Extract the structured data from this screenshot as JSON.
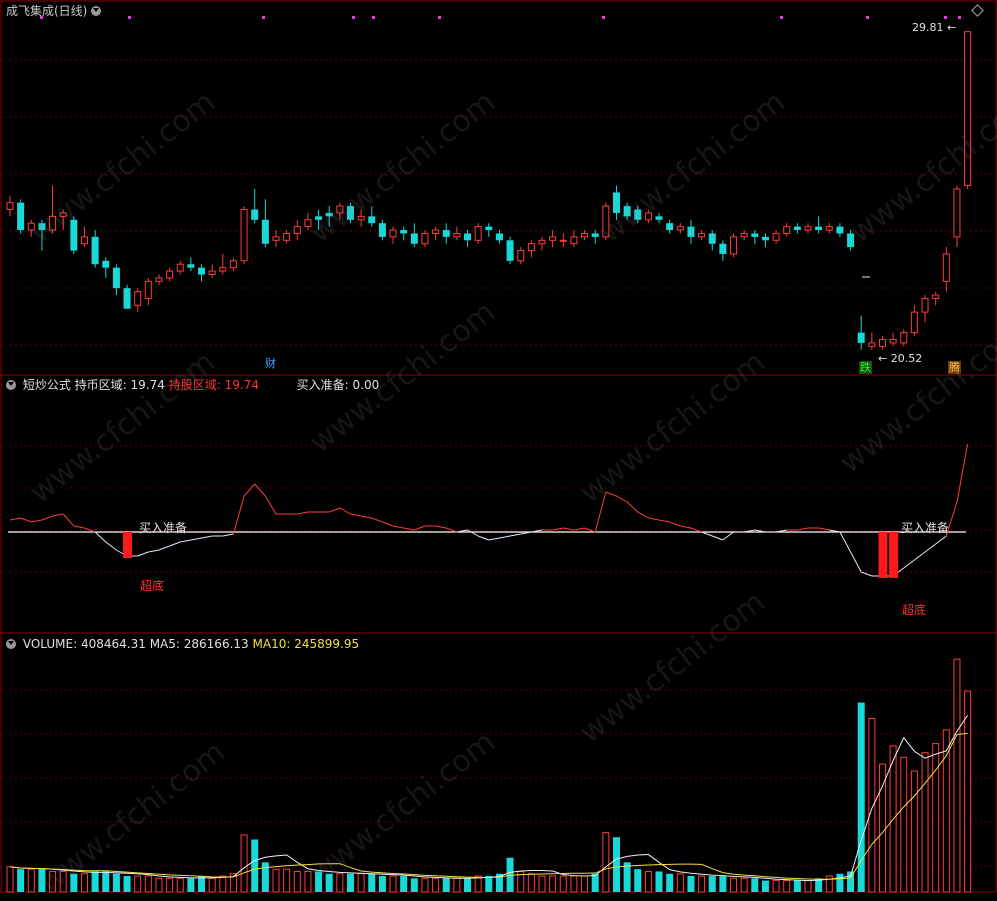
{
  "header": {
    "title": "成飞集成(日线)"
  },
  "price_panel": {
    "high_label": "29.81",
    "low_label": "20.52",
    "marker_cai": "财",
    "marker_die": "跌",
    "marker_teng": "腾"
  },
  "indicator_panel": {
    "name": "短炒公式",
    "label1": "持币区域:",
    "value1": "19.74",
    "label2": "持股区域:",
    "value2": "19.74",
    "label3": "买入准备:",
    "value3": "0.00",
    "signal_buy": "买入准备",
    "signal_bottom": "超底"
  },
  "volume_panel": {
    "volume_label": "VOLUME:",
    "volume_value": "408464.31",
    "ma5_label": "MA5:",
    "ma5_value": "286166.13",
    "ma10_label": "MA10:",
    "ma10_value": "245899.95"
  },
  "watermark": "www.cfchi.com",
  "chart_data": {
    "type": "candlestick",
    "price_range": [
      20.52,
      29.81
    ],
    "candles": [
      [
        24.6,
        24.8,
        24.4,
        25.0,
        0
      ],
      [
        24.8,
        24.0,
        23.9,
        24.9,
        1
      ],
      [
        24.0,
        24.2,
        23.8,
        24.3,
        0
      ],
      [
        24.2,
        24.0,
        23.4,
        24.3,
        1
      ],
      [
        24.0,
        24.4,
        23.9,
        25.3,
        0
      ],
      [
        24.4,
        24.5,
        24.0,
        24.6,
        0
      ],
      [
        24.3,
        23.4,
        23.3,
        24.4,
        1
      ],
      [
        23.6,
        23.8,
        23.5,
        24.1,
        0
      ],
      [
        23.8,
        23.0,
        22.9,
        24.0,
        1
      ],
      [
        23.1,
        22.9,
        22.6,
        23.2,
        1
      ],
      [
        22.9,
        22.3,
        22.1,
        23.0,
        1
      ],
      [
        22.3,
        21.7,
        21.7,
        22.4,
        1
      ],
      [
        21.8,
        22.2,
        21.6,
        22.3,
        0
      ],
      [
        22.0,
        22.5,
        21.8,
        22.6,
        0
      ],
      [
        22.5,
        22.6,
        22.4,
        22.7,
        0
      ],
      [
        22.6,
        22.8,
        22.5,
        22.9,
        0
      ],
      [
        22.8,
        23.0,
        22.7,
        23.1,
        0
      ],
      [
        23.0,
        22.9,
        22.8,
        23.2,
        1
      ],
      [
        22.9,
        22.7,
        22.5,
        23.0,
        1
      ],
      [
        22.7,
        22.8,
        22.6,
        23.0,
        0
      ],
      [
        22.8,
        22.9,
        22.7,
        23.3,
        0
      ],
      [
        22.9,
        23.1,
        22.8,
        23.2,
        0
      ],
      [
        23.1,
        24.6,
        23.0,
        24.7,
        0
      ],
      [
        24.6,
        24.3,
        24.2,
        25.2,
        1
      ],
      [
        24.3,
        23.6,
        23.5,
        24.9,
        1
      ],
      [
        23.8,
        23.7,
        23.5,
        24.0,
        0
      ],
      [
        23.7,
        23.9,
        23.6,
        24.0,
        0
      ],
      [
        23.9,
        24.1,
        23.7,
        24.3,
        0
      ],
      [
        24.1,
        24.3,
        24.0,
        24.5,
        0
      ],
      [
        24.3,
        24.4,
        24.0,
        24.6,
        1
      ],
      [
        24.4,
        24.5,
        24.1,
        24.7,
        1
      ],
      [
        24.5,
        24.7,
        24.3,
        24.8,
        0
      ],
      [
        24.7,
        24.3,
        24.2,
        24.8,
        1
      ],
      [
        24.3,
        24.4,
        24.1,
        24.6,
        0
      ],
      [
        24.4,
        24.2,
        24.1,
        24.7,
        1
      ],
      [
        24.2,
        23.8,
        23.7,
        24.3,
        1
      ],
      [
        23.8,
        24.0,
        23.6,
        24.1,
        0
      ],
      [
        24.0,
        23.9,
        23.7,
        24.1,
        1
      ],
      [
        23.9,
        23.6,
        23.5,
        24.2,
        1
      ],
      [
        23.6,
        23.9,
        23.5,
        24.0,
        0
      ],
      [
        23.9,
        24.0,
        23.7,
        24.1,
        0
      ],
      [
        24.0,
        23.8,
        23.6,
        24.2,
        1
      ],
      [
        23.8,
        23.9,
        23.7,
        24.1,
        0
      ],
      [
        23.9,
        23.7,
        23.5,
        24.0,
        1
      ],
      [
        23.7,
        24.1,
        23.6,
        24.2,
        0
      ],
      [
        24.1,
        24.0,
        23.8,
        24.2,
        1
      ],
      [
        23.9,
        23.7,
        23.6,
        24.0,
        1
      ],
      [
        23.7,
        23.1,
        23.0,
        23.8,
        1
      ],
      [
        23.1,
        23.4,
        23.0,
        23.5,
        0
      ],
      [
        23.4,
        23.6,
        23.2,
        23.7,
        0
      ],
      [
        23.6,
        23.7,
        23.4,
        23.8,
        0
      ],
      [
        23.7,
        23.8,
        23.5,
        24.0,
        0
      ],
      [
        23.7,
        23.7,
        23.5,
        23.9,
        0
      ],
      [
        23.6,
        23.8,
        23.5,
        24.0,
        0
      ],
      [
        23.8,
        23.9,
        23.7,
        24.0,
        0
      ],
      [
        23.9,
        23.8,
        23.6,
        24.0,
        1
      ],
      [
        23.8,
        24.7,
        23.7,
        24.8,
        0
      ],
      [
        25.1,
        24.5,
        24.3,
        25.3,
        1
      ],
      [
        24.7,
        24.4,
        24.3,
        24.8,
        1
      ],
      [
        24.6,
        24.3,
        24.2,
        24.7,
        1
      ],
      [
        24.3,
        24.5,
        24.2,
        24.6,
        0
      ],
      [
        24.4,
        24.3,
        24.2,
        24.5,
        1
      ],
      [
        24.2,
        24.0,
        23.9,
        24.3,
        1
      ],
      [
        24.0,
        24.1,
        23.9,
        24.2,
        0
      ],
      [
        24.1,
        23.8,
        23.6,
        24.3,
        1
      ],
      [
        23.8,
        23.9,
        23.7,
        24.0,
        0
      ],
      [
        23.9,
        23.6,
        23.4,
        24.0,
        1
      ],
      [
        23.6,
        23.3,
        23.1,
        23.7,
        1
      ],
      [
        23.3,
        23.8,
        23.2,
        23.9,
        0
      ],
      [
        23.8,
        23.9,
        23.7,
        24.0,
        0
      ],
      [
        23.9,
        23.8,
        23.6,
        24.0,
        1
      ],
      [
        23.8,
        23.7,
        23.5,
        23.9,
        1
      ],
      [
        23.7,
        23.9,
        23.6,
        24.0,
        0
      ],
      [
        23.9,
        24.1,
        23.8,
        24.2,
        0
      ],
      [
        24.1,
        24.0,
        23.9,
        24.2,
        1
      ],
      [
        24.0,
        24.1,
        23.9,
        24.2,
        0
      ],
      [
        24.1,
        24.0,
        23.9,
        24.4,
        1
      ],
      [
        24.0,
        24.1,
        23.9,
        24.2,
        0
      ],
      [
        24.1,
        23.9,
        23.8,
        24.2,
        1
      ],
      [
        23.9,
        23.5,
        23.4,
        24.0,
        1
      ],
      [
        21.0,
        20.7,
        20.5,
        21.5,
        1
      ],
      [
        20.7,
        20.6,
        20.5,
        21.0,
        0
      ],
      [
        20.6,
        20.8,
        20.5,
        20.9,
        0
      ],
      [
        20.8,
        20.7,
        20.6,
        21.0,
        0
      ],
      [
        20.7,
        21.0,
        20.6,
        21.1,
        0
      ],
      [
        21.0,
        21.6,
        20.9,
        21.8,
        0
      ],
      [
        21.6,
        22.0,
        21.3,
        22.1,
        0
      ],
      [
        22.0,
        22.1,
        21.8,
        22.2,
        0
      ],
      [
        22.5,
        23.3,
        22.2,
        23.5,
        0
      ],
      [
        23.8,
        25.2,
        23.5,
        25.3,
        0
      ],
      [
        25.3,
        29.8,
        25.2,
        29.81,
        0
      ]
    ],
    "indicator_line": [
      0.06,
      0.07,
      0.05,
      0.06,
      0.08,
      0.09,
      0.03,
      0.02,
      0.0,
      -0.05,
      -0.09,
      -0.12,
      -0.12,
      -0.1,
      -0.09,
      -0.07,
      -0.05,
      -0.04,
      -0.03,
      -0.02,
      -0.02,
      -0.01,
      0.18,
      0.24,
      0.18,
      0.09,
      0.09,
      0.09,
      0.1,
      0.1,
      0.1,
      0.12,
      0.09,
      0.08,
      0.07,
      0.05,
      0.03,
      0.02,
      0.01,
      0.03,
      0.03,
      0.02,
      0.0,
      0.01,
      -0.02,
      -0.04,
      -0.03,
      -0.02,
      -0.01,
      0.0,
      0.01,
      0.01,
      0.02,
      0.01,
      0.02,
      0.0,
      0.2,
      0.18,
      0.15,
      0.1,
      0.07,
      0.06,
      0.05,
      0.03,
      0.02,
      0.0,
      -0.02,
      -0.04,
      0.0,
      0.0,
      0.01,
      0.0,
      0.0,
      0.01,
      0.01,
      0.02,
      0.02,
      0.01,
      0.0,
      -0.1,
      -0.2,
      -0.22,
      -0.22,
      -0.22,
      -0.18,
      -0.14,
      -0.1,
      -0.06,
      -0.02,
      0.15,
      0.44
    ],
    "bottom_signal_bars": [
      11,
      82,
      83
    ],
    "volume": [
      1.1,
      1.0,
      1.0,
      1.0,
      0.9,
      0.9,
      0.8,
      0.8,
      0.9,
      0.9,
      0.8,
      0.7,
      0.7,
      0.7,
      0.6,
      0.6,
      0.6,
      0.6,
      0.7,
      0.6,
      0.7,
      0.8,
      2.5,
      2.3,
      1.3,
      1.0,
      1.0,
      0.9,
      0.9,
      0.9,
      0.8,
      0.8,
      0.8,
      0.8,
      0.8,
      0.7,
      0.7,
      0.7,
      0.6,
      0.6,
      0.6,
      0.6,
      0.6,
      0.6,
      0.7,
      0.7,
      0.8,
      1.5,
      0.9,
      0.8,
      0.7,
      0.7,
      0.7,
      0.7,
      0.7,
      0.8,
      2.6,
      2.4,
      1.3,
      1.0,
      0.9,
      0.9,
      0.8,
      0.8,
      0.7,
      0.7,
      0.7,
      0.7,
      0.6,
      0.6,
      0.6,
      0.5,
      0.5,
      0.5,
      0.5,
      0.5,
      0.6,
      0.7,
      0.8,
      0.9,
      8.3,
      7.6,
      5.6,
      6.4,
      5.9,
      5.3,
      6.1,
      6.5,
      7.1,
      10.2,
      8.8
    ]
  }
}
